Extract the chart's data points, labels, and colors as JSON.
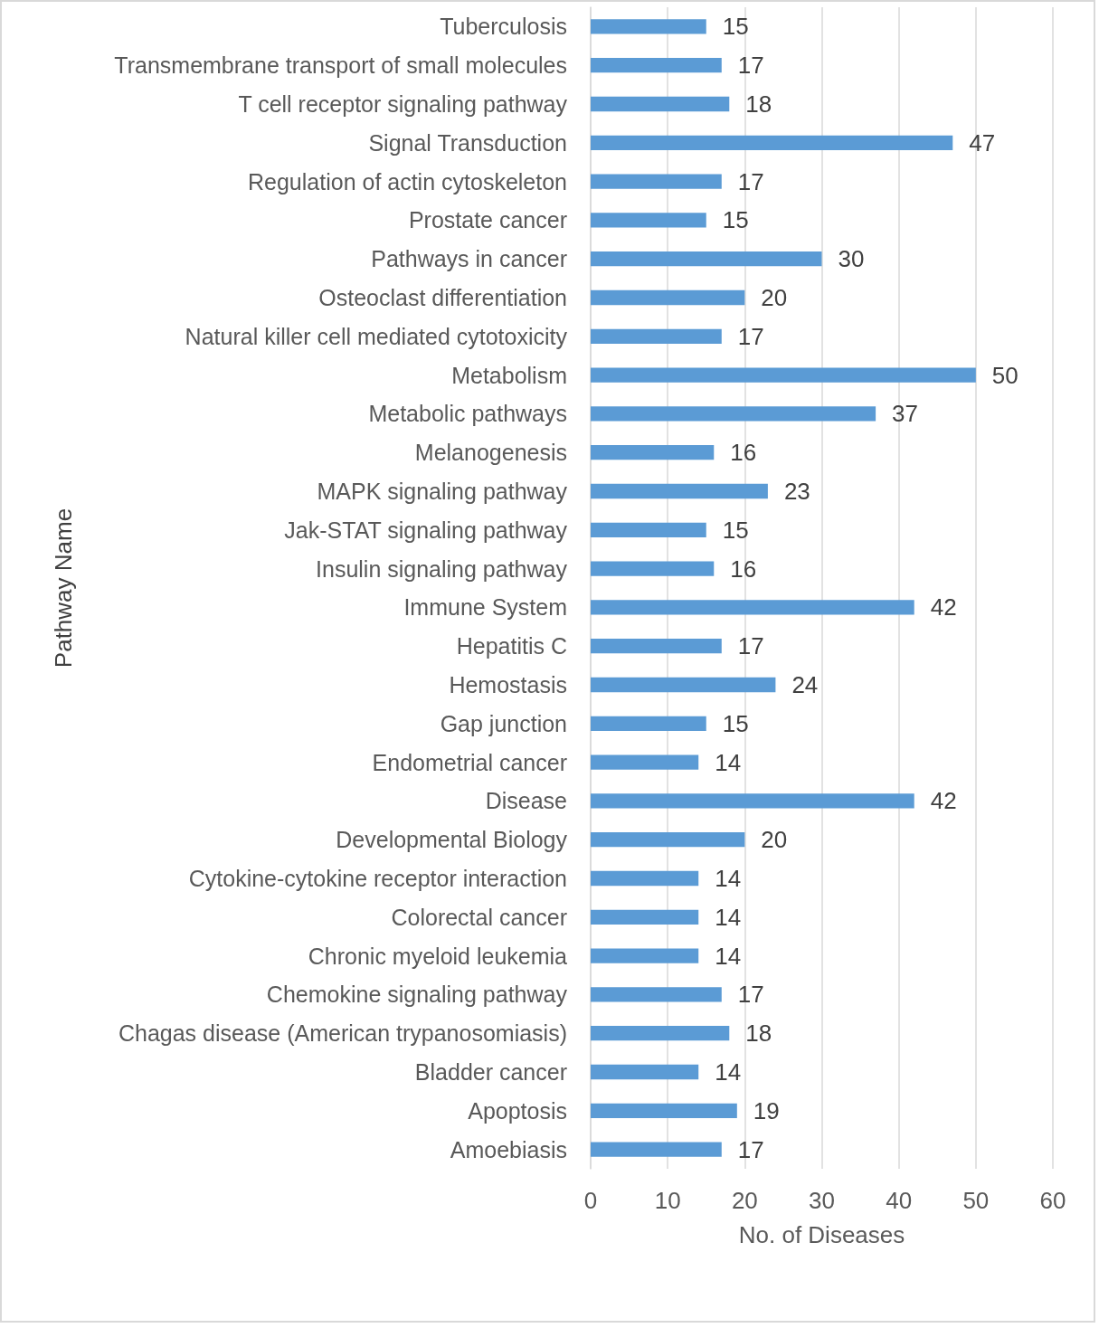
{
  "chart_data": {
    "type": "bar",
    "orientation": "horizontal",
    "xlabel": "No. of Diseases",
    "ylabel": "Pathway Name",
    "categories": [
      "Tuberculosis",
      "Transmembrane transport of small molecules",
      "T cell receptor signaling pathway",
      "Signal Transduction",
      "Regulation of actin cytoskeleton",
      "Prostate cancer",
      "Pathways in cancer",
      "Osteoclast differentiation",
      "Natural killer cell mediated cytotoxicity",
      "Metabolism",
      "Metabolic pathways",
      "Melanogenesis",
      "MAPK signaling pathway",
      "Jak-STAT signaling pathway",
      "Insulin signaling pathway",
      "Immune System",
      "Hepatitis C",
      "Hemostasis",
      "Gap junction",
      "Endometrial cancer",
      "Disease",
      "Developmental Biology",
      "Cytokine-cytokine receptor interaction",
      "Colorectal cancer",
      "Chronic myeloid leukemia",
      "Chemokine signaling pathway",
      "Chagas disease (American trypanosomiasis)",
      "Bladder cancer",
      "Apoptosis",
      "Amoebiasis"
    ],
    "values": [
      15,
      17,
      18,
      47,
      17,
      15,
      30,
      20,
      17,
      50,
      37,
      16,
      23,
      15,
      16,
      42,
      17,
      24,
      15,
      14,
      42,
      20,
      14,
      14,
      14,
      17,
      18,
      14,
      19,
      17
    ],
    "color": "#5b9bd5",
    "xlim": [
      0,
      60
    ],
    "xticks": [
      0,
      10,
      20,
      30,
      40,
      50,
      60
    ],
    "grid": "x",
    "data_labels": true
  }
}
